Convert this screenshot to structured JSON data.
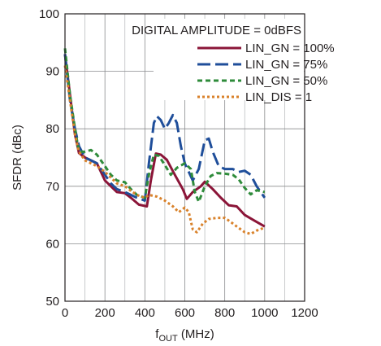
{
  "chart_data": {
    "type": "line",
    "ylabel": "SFDR (dBc)",
    "xlabel": {
      "main": "f",
      "sub": "OUT",
      "unit": " (MHz)"
    },
    "xlim": [
      0,
      1200
    ],
    "ylim": [
      50,
      100
    ],
    "xticks": [
      0,
      200,
      400,
      600,
      800,
      1000,
      1200
    ],
    "yticks": [
      50,
      60,
      70,
      80,
      90,
      100
    ],
    "x_major_step": 200,
    "x_minor_step": 100,
    "y_step": 10,
    "grid": true,
    "legend_title": "DIGITAL AMPLITUDE = 0dBFS",
    "legend_position": "top-right",
    "series": [
      {
        "name": "LIN_GN = 100%",
        "color": "#8b1538",
        "dash": "solid",
        "points": [
          [
            0,
            93
          ],
          [
            25,
            86
          ],
          [
            50,
            79
          ],
          [
            70,
            75.8
          ],
          [
            100,
            75
          ],
          [
            130,
            74.5
          ],
          [
            160,
            74
          ],
          [
            200,
            71
          ],
          [
            230,
            70
          ],
          [
            260,
            69
          ],
          [
            300,
            68.8
          ],
          [
            330,
            68
          ],
          [
            370,
            66.8
          ],
          [
            410,
            66.5
          ],
          [
            430,
            71
          ],
          [
            455,
            75.7
          ],
          [
            480,
            75.5
          ],
          [
            510,
            74.6
          ],
          [
            550,
            72
          ],
          [
            590,
            69.5
          ],
          [
            610,
            67.8
          ],
          [
            640,
            69
          ],
          [
            680,
            70
          ],
          [
            700,
            70.8
          ],
          [
            740,
            69.5
          ],
          [
            780,
            68
          ],
          [
            820,
            66.7
          ],
          [
            860,
            66.5
          ],
          [
            900,
            65
          ],
          [
            950,
            64
          ],
          [
            1000,
            63
          ]
        ]
      },
      {
        "name": "LIN_GN = 75%",
        "color": "#1f4e9a",
        "dash": "long",
        "points": [
          [
            0,
            93
          ],
          [
            25,
            85
          ],
          [
            50,
            80
          ],
          [
            70,
            77
          ],
          [
            100,
            75
          ],
          [
            130,
            74.5
          ],
          [
            160,
            74
          ],
          [
            200,
            72
          ],
          [
            230,
            70.5
          ],
          [
            260,
            69.5
          ],
          [
            300,
            69
          ],
          [
            330,
            68.5
          ],
          [
            360,
            68
          ],
          [
            400,
            67.5
          ],
          [
            420,
            74
          ],
          [
            445,
            81
          ],
          [
            460,
            82.2
          ],
          [
            480,
            81.5
          ],
          [
            500,
            80
          ],
          [
            520,
            81
          ],
          [
            540,
            82.4
          ],
          [
            560,
            81
          ],
          [
            580,
            77
          ],
          [
            600,
            74
          ],
          [
            640,
            71
          ],
          [
            670,
            73
          ],
          [
            700,
            78
          ],
          [
            720,
            78.3
          ],
          [
            740,
            76
          ],
          [
            770,
            73.5
          ],
          [
            800,
            73
          ],
          [
            840,
            73
          ],
          [
            870,
            72.5
          ],
          [
            900,
            72.7
          ],
          [
            930,
            72
          ],
          [
            960,
            70
          ],
          [
            1000,
            68
          ]
        ]
      },
      {
        "name": "LIN_GN = 50%",
        "color": "#2e8b3a",
        "dash": "medium",
        "points": [
          [
            0,
            94
          ],
          [
            25,
            86
          ],
          [
            50,
            80
          ],
          [
            70,
            76
          ],
          [
            100,
            76
          ],
          [
            130,
            76.3
          ],
          [
            160,
            75.5
          ],
          [
            200,
            73.5
          ],
          [
            230,
            72
          ],
          [
            260,
            71
          ],
          [
            300,
            70.7
          ],
          [
            330,
            69.5
          ],
          [
            360,
            68.5
          ],
          [
            400,
            68
          ],
          [
            420,
            72
          ],
          [
            445,
            75.5
          ],
          [
            470,
            75.3
          ],
          [
            500,
            73.7
          ],
          [
            530,
            72
          ],
          [
            560,
            73.2
          ],
          [
            600,
            74
          ],
          [
            630,
            73
          ],
          [
            650,
            69
          ],
          [
            670,
            67.3
          ],
          [
            700,
            70
          ],
          [
            730,
            71.8
          ],
          [
            760,
            72.3
          ],
          [
            800,
            72.2
          ],
          [
            840,
            72
          ],
          [
            870,
            71.2
          ],
          [
            900,
            69.7
          ],
          [
            930,
            68.6
          ],
          [
            960,
            69.3
          ],
          [
            1000,
            69
          ]
        ]
      },
      {
        "name": "LIN_DIS = 1",
        "color": "#d9822b",
        "dash": "dotted",
        "points": [
          [
            0,
            91
          ],
          [
            25,
            85
          ],
          [
            50,
            79
          ],
          [
            70,
            76
          ],
          [
            100,
            74.5
          ],
          [
            130,
            74
          ],
          [
            160,
            73.5
          ],
          [
            200,
            72.5
          ],
          [
            230,
            71.5
          ],
          [
            260,
            70.5
          ],
          [
            300,
            70
          ],
          [
            330,
            69.2
          ],
          [
            360,
            68.5
          ],
          [
            400,
            68
          ],
          [
            420,
            68.5
          ],
          [
            460,
            68.2
          ],
          [
            500,
            67.5
          ],
          [
            540,
            66.5
          ],
          [
            570,
            65.5
          ],
          [
            600,
            66.3
          ],
          [
            620,
            65.5
          ],
          [
            640,
            62.5
          ],
          [
            660,
            62
          ],
          [
            690,
            63.5
          ],
          [
            720,
            64.3
          ],
          [
            760,
            64.5
          ],
          [
            800,
            64.5
          ],
          [
            830,
            63.8
          ],
          [
            860,
            63
          ],
          [
            900,
            62
          ],
          [
            930,
            61.7
          ],
          [
            960,
            62.3
          ],
          [
            1000,
            62.8
          ]
        ]
      }
    ]
  }
}
